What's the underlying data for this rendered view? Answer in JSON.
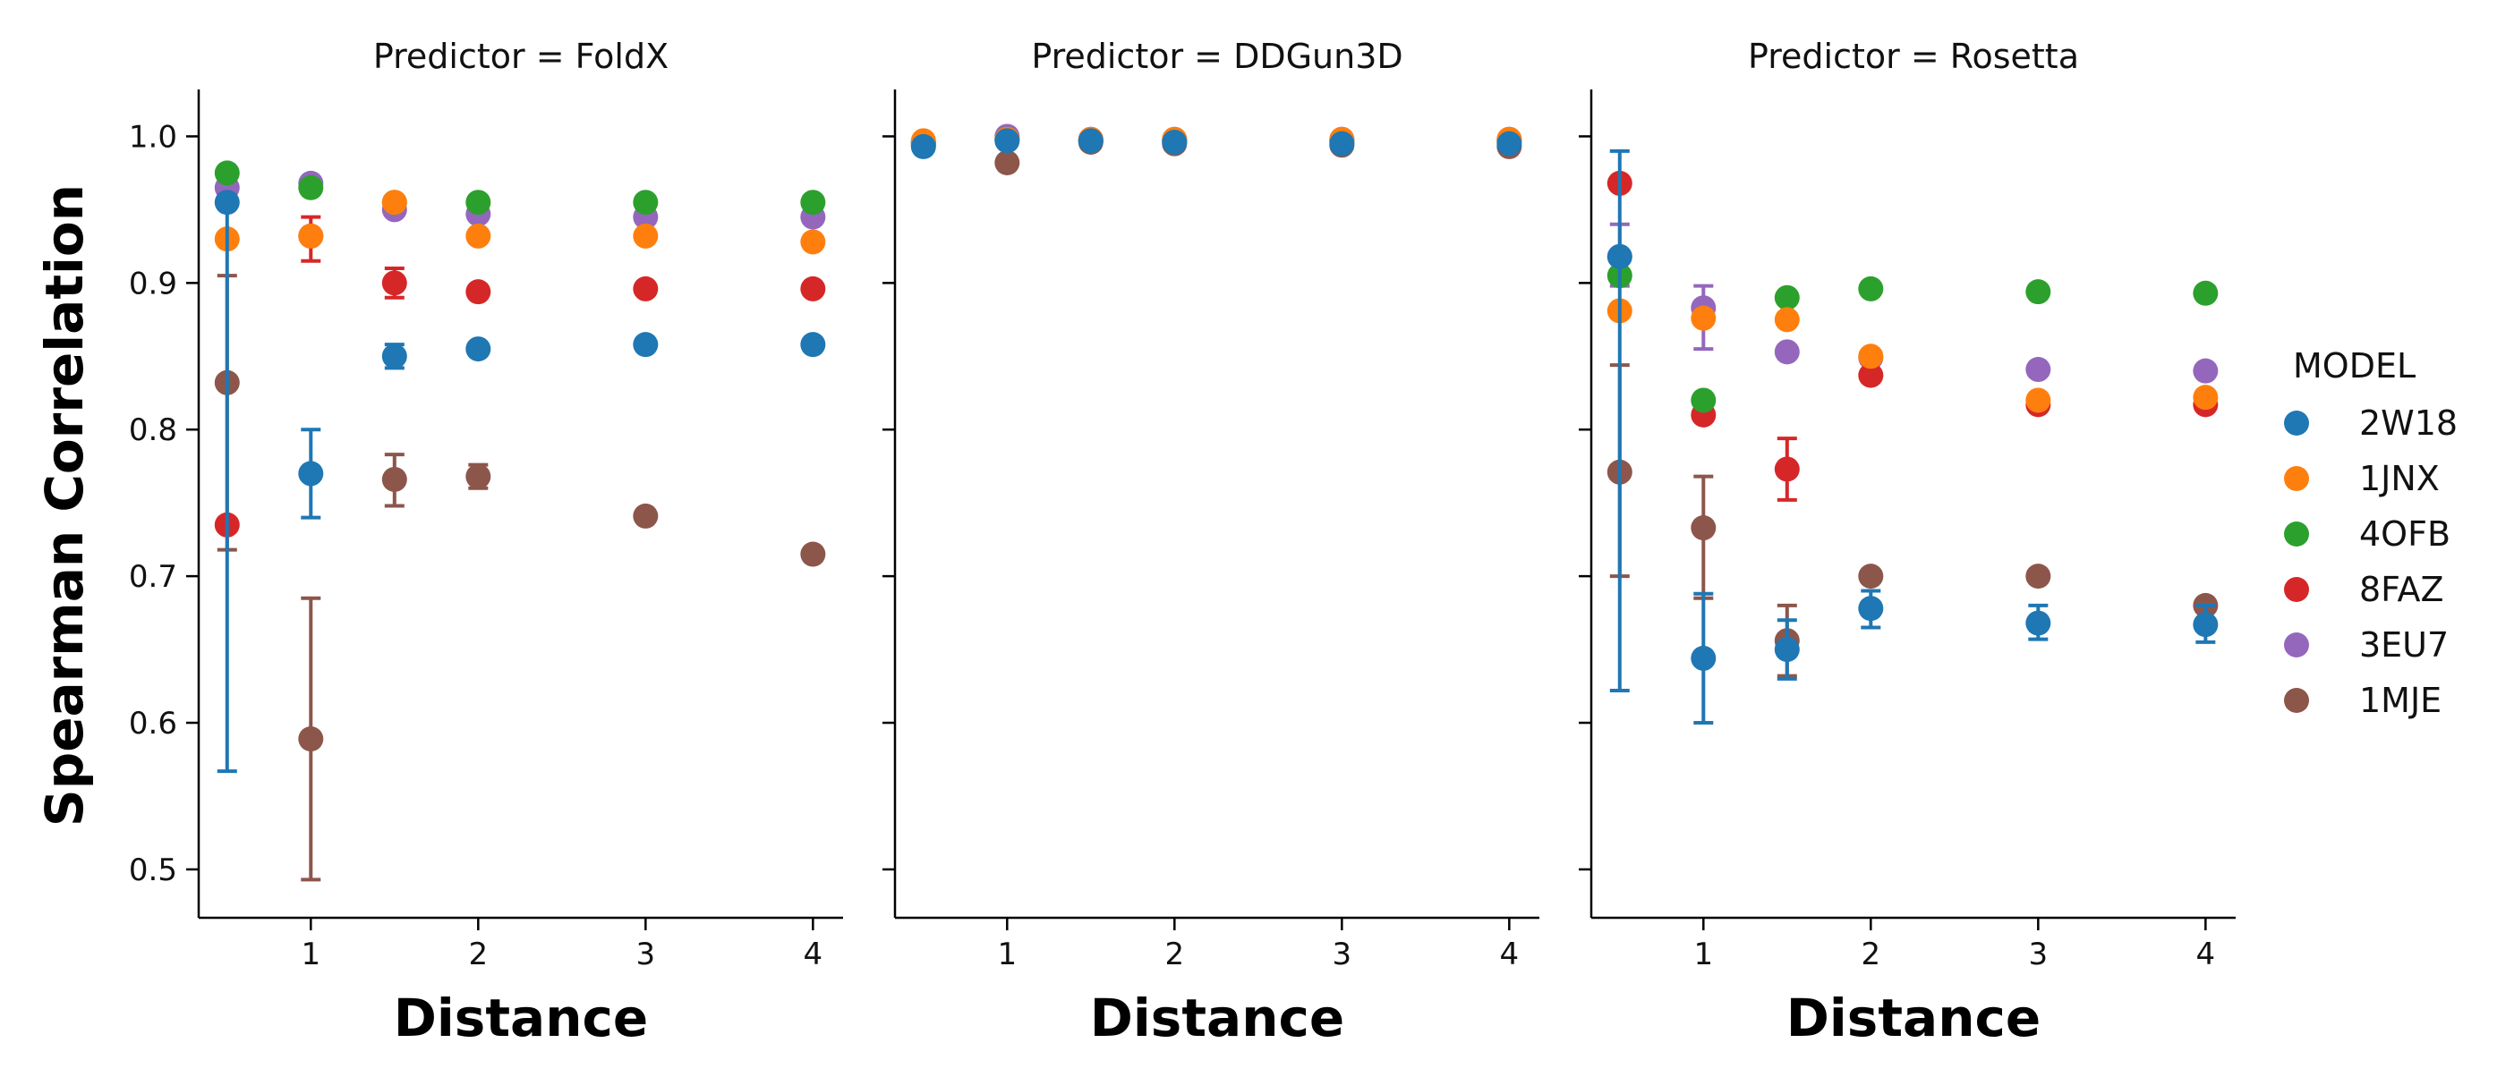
{
  "chart_data": {
    "type": "scatter",
    "ylabel": "Spearman Correlation",
    "ylim": [
      0.467,
      1.032
    ],
    "yticks": [
      0.5,
      0.6,
      0.7,
      0.8,
      0.9,
      1.0
    ],
    "ytick_labels": [
      "0.5",
      "0.6",
      "0.7",
      "0.8",
      "0.9",
      "1.0"
    ],
    "xlim": [
      0.33,
      4.18
    ],
    "xticks": [
      1,
      2,
      3,
      4
    ],
    "xtick_labels": [
      "1",
      "2",
      "3",
      "4"
    ],
    "legend": {
      "title": "MODEL",
      "placement": "right",
      "entries": [
        "2W18",
        "1JNX",
        "4OFB",
        "8FAZ",
        "3EU7",
        "1MJE"
      ]
    },
    "colors": {
      "2W18": "#1f77b4",
      "1JNX": "#ff7f0e",
      "4OFB": "#2ca02c",
      "8FAZ": "#d62728",
      "3EU7": "#9467bd",
      "1MJE": "#8c564b"
    },
    "panels": [
      {
        "title": "Predictor = FoldX",
        "xlabel": "Distance",
        "series": [
          {
            "name": "2W18",
            "points": [
              {
                "x": 0.5,
                "y": 0.955,
                "err": [
                  0.567,
                  0.96
                ]
              },
              {
                "x": 1,
                "y": 0.77,
                "err": [
                  0.74,
                  0.8
                ]
              },
              {
                "x": 1.5,
                "y": 0.85,
                "err": [
                  0.842,
                  0.858
                ]
              },
              {
                "x": 2,
                "y": 0.855
              },
              {
                "x": 3,
                "y": 0.858
              },
              {
                "x": 4,
                "y": 0.858
              }
            ]
          },
          {
            "name": "1JNX",
            "points": [
              {
                "x": 0.5,
                "y": 0.93
              },
              {
                "x": 1,
                "y": 0.932
              },
              {
                "x": 1.5,
                "y": 0.955
              },
              {
                "x": 2,
                "y": 0.932
              },
              {
                "x": 3,
                "y": 0.932
              },
              {
                "x": 4,
                "y": 0.928
              }
            ]
          },
          {
            "name": "4OFB",
            "points": [
              {
                "x": 0.5,
                "y": 0.975
              },
              {
                "x": 1,
                "y": 0.965
              },
              {
                "x": 1.5,
                "y": 0.955
              },
              {
                "x": 2,
                "y": 0.955
              },
              {
                "x": 3,
                "y": 0.955
              },
              {
                "x": 4,
                "y": 0.955
              }
            ]
          },
          {
            "name": "8FAZ",
            "points": [
              {
                "x": 0.5,
                "y": 0.735
              },
              {
                "x": 1,
                "y": 0.932,
                "err": [
                  0.915,
                  0.945
                ]
              },
              {
                "x": 1.5,
                "y": 0.9,
                "err": [
                  0.89,
                  0.91
                ]
              },
              {
                "x": 2,
                "y": 0.894
              },
              {
                "x": 3,
                "y": 0.896
              },
              {
                "x": 4,
                "y": 0.896
              }
            ]
          },
          {
            "name": "3EU7",
            "points": [
              {
                "x": 0.5,
                "y": 0.965
              },
              {
                "x": 1,
                "y": 0.968
              },
              {
                "x": 1.5,
                "y": 0.95
              },
              {
                "x": 2,
                "y": 0.947
              },
              {
                "x": 3,
                "y": 0.945
              },
              {
                "x": 4,
                "y": 0.945
              }
            ]
          },
          {
            "name": "1MJE",
            "points": [
              {
                "x": 0.5,
                "y": 0.832,
                "err": [
                  0.718,
                  0.905
                ]
              },
              {
                "x": 1,
                "y": 0.589,
                "err": [
                  0.493,
                  0.685
                ]
              },
              {
                "x": 1.5,
                "y": 0.766,
                "err": [
                  0.748,
                  0.783
                ]
              },
              {
                "x": 2,
                "y": 0.768,
                "err": [
                  0.76,
                  0.776
                ]
              },
              {
                "x": 3,
                "y": 0.741
              },
              {
                "x": 4,
                "y": 0.715
              }
            ]
          }
        ]
      },
      {
        "title": "Predictor = DDGun3D",
        "xlabel": "Distance",
        "series": [
          {
            "name": "2W18",
            "points": [
              {
                "x": 0.5,
                "y": 0.993
              },
              {
                "x": 1,
                "y": 0.997
              },
              {
                "x": 1.5,
                "y": 0.997
              },
              {
                "x": 2,
                "y": 0.996
              },
              {
                "x": 3,
                "y": 0.995
              },
              {
                "x": 4,
                "y": 0.995
              }
            ]
          },
          {
            "name": "1JNX",
            "points": [
              {
                "x": 0.5,
                "y": 0.997
              },
              {
                "x": 1,
                "y": 0.998
              },
              {
                "x": 1.5,
                "y": 0.998
              },
              {
                "x": 2,
                "y": 0.998
              },
              {
                "x": 3,
                "y": 0.998
              },
              {
                "x": 4,
                "y": 0.998
              }
            ]
          },
          {
            "name": "4OFB",
            "points": [
              {
                "x": 0.5,
                "y": 0.996
              },
              {
                "x": 1,
                "y": 0.998
              },
              {
                "x": 1.5,
                "y": 0.997
              },
              {
                "x": 2,
                "y": 0.997
              },
              {
                "x": 3,
                "y": 0.997
              },
              {
                "x": 4,
                "y": 0.997
              }
            ]
          },
          {
            "name": "8FAZ",
            "points": [
              {
                "x": 0.5,
                "y": 0.996
              },
              {
                "x": 1,
                "y": 0.998
              },
              {
                "x": 1.5,
                "y": 0.997
              },
              {
                "x": 2,
                "y": 0.997
              },
              {
                "x": 3,
                "y": 0.997
              },
              {
                "x": 4,
                "y": 0.997
              }
            ]
          },
          {
            "name": "3EU7",
            "points": [
              {
                "x": 0.5,
                "y": 0.995
              },
              {
                "x": 1,
                "y": 1.0
              },
              {
                "x": 1.5,
                "y": 0.998
              },
              {
                "x": 2,
                "y": 0.998
              },
              {
                "x": 3,
                "y": 0.998
              },
              {
                "x": 4,
                "y": 0.998
              }
            ]
          },
          {
            "name": "1MJE",
            "points": [
              {
                "x": 0.5,
                "y": 0.994
              },
              {
                "x": 1,
                "y": 0.982
              },
              {
                "x": 1.5,
                "y": 0.996
              },
              {
                "x": 2,
                "y": 0.995
              },
              {
                "x": 3,
                "y": 0.994
              },
              {
                "x": 4,
                "y": 0.993
              }
            ]
          }
        ]
      },
      {
        "title": "Predictor = Rosetta",
        "xlabel": "Distance",
        "series": [
          {
            "name": "2W18",
            "points": [
              {
                "x": 0.5,
                "y": 0.918,
                "err": [
                  0.622,
                  0.99
                ]
              },
              {
                "x": 1,
                "y": 0.644,
                "err": [
                  0.6,
                  0.688
                ]
              },
              {
                "x": 1.5,
                "y": 0.65,
                "err": [
                  0.63,
                  0.67
                ]
              },
              {
                "x": 2,
                "y": 0.678,
                "err": [
                  0.665,
                  0.69
                ]
              },
              {
                "x": 3,
                "y": 0.668,
                "err": [
                  0.657,
                  0.68
                ]
              },
              {
                "x": 4,
                "y": 0.667,
                "err": [
                  0.655,
                  0.68
                ]
              }
            ]
          },
          {
            "name": "1JNX",
            "points": [
              {
                "x": 0.5,
                "y": 0.881
              },
              {
                "x": 1,
                "y": 0.876
              },
              {
                "x": 1.5,
                "y": 0.875
              },
              {
                "x": 2,
                "y": 0.85
              },
              {
                "x": 3,
                "y": 0.82
              },
              {
                "x": 4,
                "y": 0.822
              }
            ]
          },
          {
            "name": "4OFB",
            "points": [
              {
                "x": 0.5,
                "y": 0.905
              },
              {
                "x": 1,
                "y": 0.82
              },
              {
                "x": 1.5,
                "y": 0.89
              },
              {
                "x": 2,
                "y": 0.896
              },
              {
                "x": 3,
                "y": 0.894
              },
              {
                "x": 4,
                "y": 0.893
              }
            ]
          },
          {
            "name": "8FAZ",
            "points": [
              {
                "x": 0.5,
                "y": 0.968
              },
              {
                "x": 1,
                "y": 0.81
              },
              {
                "x": 1.5,
                "y": 0.773,
                "err": [
                  0.752,
                  0.794
                ]
              },
              {
                "x": 2,
                "y": 0.837
              },
              {
                "x": 3,
                "y": 0.817
              },
              {
                "x": 4,
                "y": 0.817
              }
            ]
          },
          {
            "name": "3EU7",
            "points": [
              {
                "x": 0.5,
                "y": 0.918,
                "err": [
                  0.898,
                  0.94
                ]
              },
              {
                "x": 1,
                "y": 0.883,
                "err": [
                  0.855,
                  0.898
                ]
              },
              {
                "x": 1.5,
                "y": 0.853
              },
              {
                "x": 2,
                "y": 0.849
              },
              {
                "x": 3,
                "y": 0.841
              },
              {
                "x": 4,
                "y": 0.84
              }
            ]
          },
          {
            "name": "1MJE",
            "points": [
              {
                "x": 0.5,
                "y": 0.771,
                "err": [
                  0.7,
                  0.844
                ]
              },
              {
                "x": 1,
                "y": 0.733,
                "err": [
                  0.685,
                  0.768
                ]
              },
              {
                "x": 1.5,
                "y": 0.656,
                "err": [
                  0.632,
                  0.68
                ]
              },
              {
                "x": 2,
                "y": 0.7
              },
              {
                "x": 3,
                "y": 0.7
              },
              {
                "x": 4,
                "y": 0.68
              }
            ]
          }
        ]
      }
    ]
  }
}
